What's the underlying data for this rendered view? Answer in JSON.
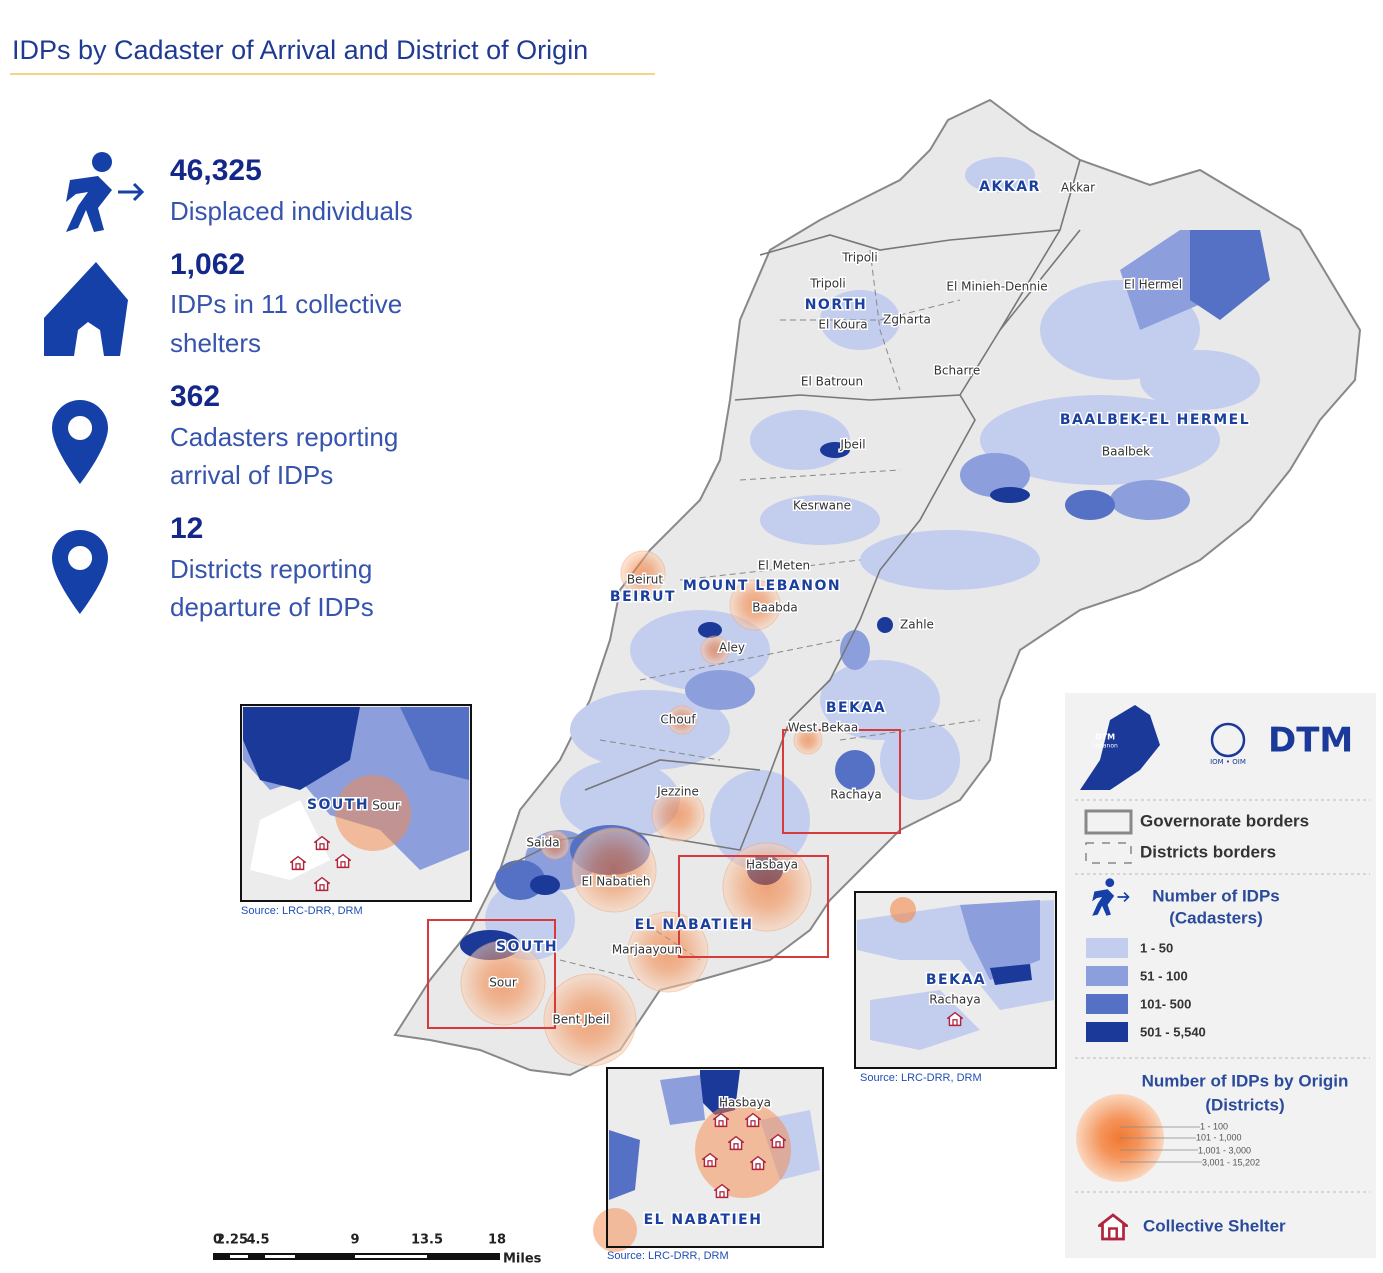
{
  "title": "IDPs by Cadaster of Arrival and District of Origin",
  "stats": [
    {
      "value": "46,325",
      "label": [
        "Displaced individuals"
      ]
    },
    {
      "value": "1,062",
      "label": [
        "IDPs in 11 collective",
        "shelters"
      ]
    },
    {
      "value": "362",
      "label": [
        "Cadasters reporting",
        "arrival of IDPs"
      ]
    },
    {
      "value": "12",
      "label": [
        "Districts reporting",
        "departure of IDPs"
      ]
    }
  ],
  "map": {
    "governorates": [
      "AKKAR",
      "NORTH",
      "BAALBEK-EL HERMEL",
      "MOUNT LEBANON",
      "BEIRUT",
      "BEKAA",
      "EL NABATIEH",
      "SOUTH"
    ],
    "districts": [
      "Akkar",
      "Tripoli",
      "Tripoli",
      "El Minieh-Dennie",
      "El Hermel",
      "El Koura",
      "Zgharta",
      "Bcharre",
      "El Batroun",
      "Baalbek",
      "Jbeil",
      "Kesrwane",
      "El Meten",
      "Beirut",
      "Baabda",
      "Zahle",
      "Aley",
      "Chouf",
      "West Bekaa",
      "Rachaya",
      "Jezzine",
      "Saida",
      "El Nabatieh",
      "Hasbaya",
      "Marjaayoun",
      "Sour",
      "Bent Jbeil"
    ]
  },
  "insets": [
    {
      "labels": [
        "SOUTH",
        "Sour"
      ],
      "source": "Source: LRC-DRR, DRM"
    },
    {
      "labels": [
        "BEKAA",
        "Rachaya"
      ],
      "source": "Source: LRC-DRR, DRM"
    },
    {
      "labels": [
        "Hasbaya",
        "EL NABATIEH"
      ],
      "source": "Source: LRC-DRR, DRM"
    }
  ],
  "legend": {
    "logo": {
      "country": "Lebanon",
      "badge": "DTM",
      "org": "IOM • OIM",
      "name": "DTM"
    },
    "borders": [
      "Governorate borders",
      "Districts borders"
    ],
    "cadasters": {
      "title": [
        "Number of IDPs",
        "(Cadasters)"
      ],
      "classes": [
        "1 - 50",
        "51 - 100",
        "101- 500",
        "501 - 5,540"
      ],
      "colors": [
        "#c3cdee",
        "#8c9fdc",
        "#5571c6",
        "#1b3999"
      ]
    },
    "origin": {
      "title": [
        "Number of IDPs by Origin",
        "(Districts)"
      ],
      "classes": [
        "1 - 100",
        "101 - 1,000",
        "1,001 - 3,000",
        "3,001 - 15,202"
      ]
    },
    "shelter": "Collective Shelter"
  },
  "scale": {
    "ticks": [
      "0",
      "2.25",
      "4.5",
      "9",
      "13.5",
      "18"
    ],
    "unit": "Miles"
  }
}
